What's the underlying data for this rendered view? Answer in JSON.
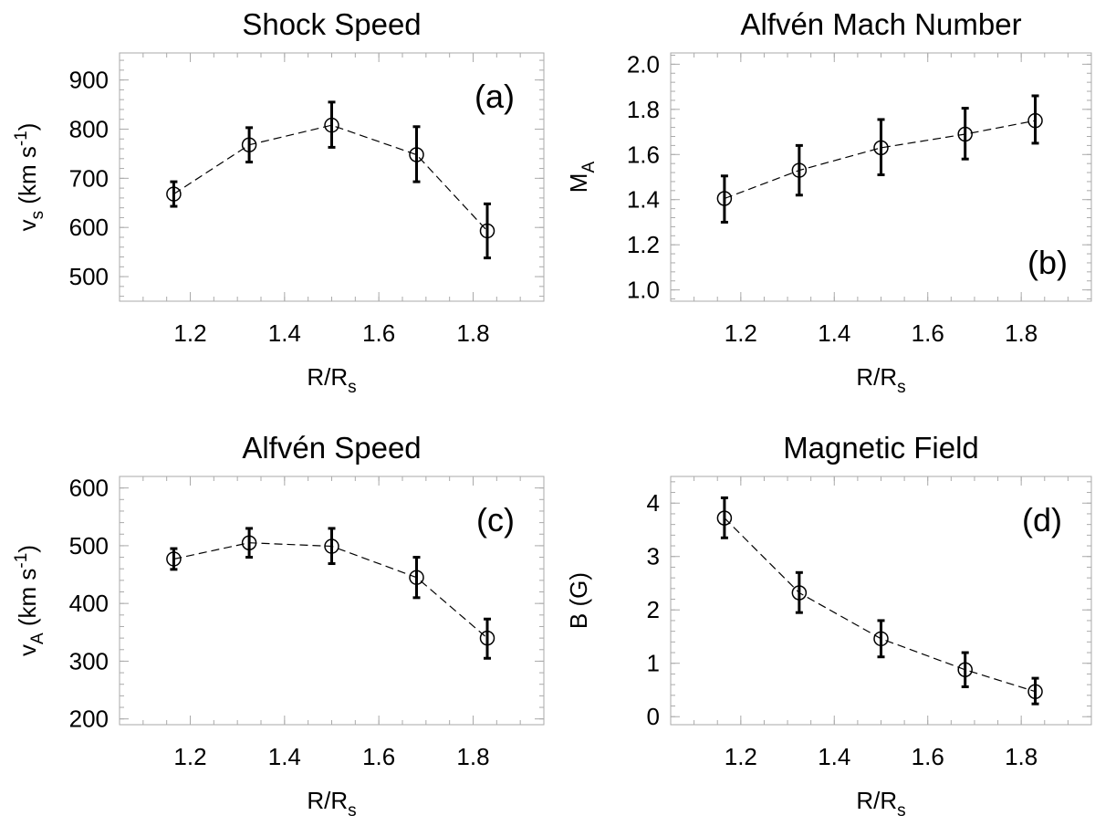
{
  "chart_data": [
    {
      "type": "scatter",
      "title": "Shock Speed",
      "panel_label": "(a)",
      "panel_label_position": "top-right",
      "xlabel": {
        "main": "R/R",
        "sub": "s"
      },
      "ylabel": {
        "main": "v",
        "sub": "s",
        "unit_pre": " (km s",
        "sup": "-1",
        "unit_post": ")"
      },
      "xlim": [
        1.05,
        1.95
      ],
      "ylim": [
        450,
        955
      ],
      "xticks": [
        1.2,
        1.4,
        1.6,
        1.8
      ],
      "xtick_labels": [
        "1.2",
        "1.4",
        "1.6",
        "1.8"
      ],
      "yticks": [
        500,
        600,
        700,
        800,
        900
      ],
      "ytick_labels": [
        "500",
        "600",
        "700",
        "800",
        "900"
      ],
      "x": [
        1.165,
        1.325,
        1.5,
        1.68,
        1.83
      ],
      "y": [
        668,
        768,
        808,
        748,
        593
      ],
      "yerr_low": [
        643,
        733,
        763,
        693,
        538
      ],
      "yerr_high": [
        693,
        803,
        855,
        805,
        648
      ]
    },
    {
      "type": "scatter",
      "title": "Alfvén Mach Number",
      "panel_label": "(b)",
      "panel_label_position": "bottom-right",
      "xlabel": {
        "main": "R/R",
        "sub": "s"
      },
      "ylabel": {
        "main": "M",
        "sub": "A",
        "unit_pre": "",
        "sup": "",
        "unit_post": ""
      },
      "xlim": [
        1.05,
        1.95
      ],
      "ylim": [
        0.95,
        2.05
      ],
      "xticks": [
        1.2,
        1.4,
        1.6,
        1.8
      ],
      "xtick_labels": [
        "1.2",
        "1.4",
        "1.6",
        "1.8"
      ],
      "yticks": [
        1.0,
        1.2,
        1.4,
        1.6,
        1.8,
        2.0
      ],
      "ytick_labels": [
        "1.0",
        "1.2",
        "1.4",
        "1.6",
        "1.8",
        "2.0"
      ],
      "x": [
        1.165,
        1.325,
        1.5,
        1.68,
        1.83
      ],
      "y": [
        1.405,
        1.53,
        1.63,
        1.69,
        1.75
      ],
      "yerr_low": [
        1.3,
        1.42,
        1.51,
        1.58,
        1.65
      ],
      "yerr_high": [
        1.505,
        1.64,
        1.755,
        1.805,
        1.86
      ]
    },
    {
      "type": "scatter",
      "title": "Alfvén Speed",
      "panel_label": "(c)",
      "panel_label_position": "top-right",
      "xlabel": {
        "main": "R/R",
        "sub": "s"
      },
      "ylabel": {
        "main": "v",
        "sub": "A",
        "unit_pre": " (km s",
        "sup": "-1",
        "unit_post": ")"
      },
      "xlim": [
        1.05,
        1.95
      ],
      "ylim": [
        190,
        620
      ],
      "xticks": [
        1.2,
        1.4,
        1.6,
        1.8
      ],
      "xtick_labels": [
        "1.2",
        "1.4",
        "1.6",
        "1.8"
      ],
      "yticks": [
        200,
        300,
        400,
        500,
        600
      ],
      "ytick_labels": [
        "200",
        "300",
        "400",
        "500",
        "600"
      ],
      "x": [
        1.165,
        1.325,
        1.5,
        1.68,
        1.83
      ],
      "y": [
        477,
        505,
        499,
        445,
        340
      ],
      "yerr_low": [
        459,
        480,
        469,
        410,
        305
      ],
      "yerr_high": [
        495,
        530,
        530,
        480,
        373
      ]
    },
    {
      "type": "scatter",
      "title": "Magnetic Field",
      "panel_label": "(d)",
      "panel_label_position": "top-right",
      "xlabel": {
        "main": "R/R",
        "sub": "s"
      },
      "ylabel": {
        "main": "B (G)",
        "sub": "",
        "unit_pre": "",
        "sup": "",
        "unit_post": ""
      },
      "xlim": [
        1.05,
        1.95
      ],
      "ylim": [
        -0.15,
        4.5
      ],
      "xticks": [
        1.2,
        1.4,
        1.6,
        1.8
      ],
      "xtick_labels": [
        "1.2",
        "1.4",
        "1.6",
        "1.8"
      ],
      "yticks": [
        0,
        1,
        2,
        3,
        4
      ],
      "ytick_labels": [
        "0",
        "1",
        "2",
        "3",
        "4"
      ],
      "x": [
        1.165,
        1.325,
        1.5,
        1.68,
        1.83
      ],
      "y": [
        3.72,
        2.32,
        1.46,
        0.88,
        0.47
      ],
      "yerr_low": [
        3.35,
        1.95,
        1.12,
        0.56,
        0.24
      ],
      "yerr_high": [
        4.1,
        2.7,
        1.8,
        1.2,
        0.72
      ]
    }
  ]
}
